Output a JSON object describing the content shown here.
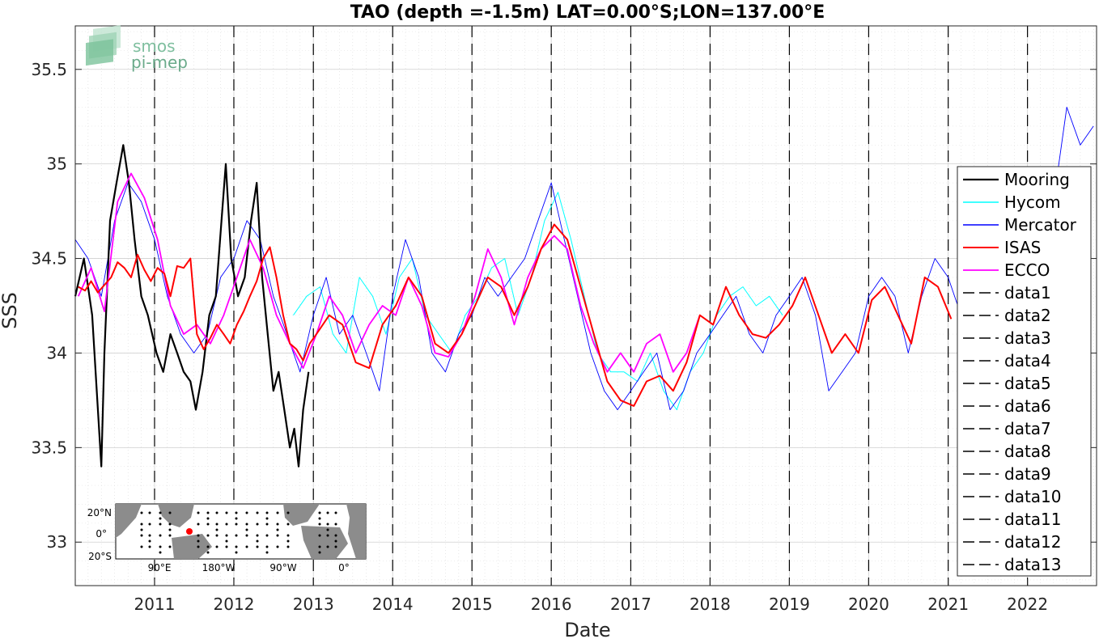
{
  "chart_data": {
    "type": "line",
    "title": "TAO (depth =-1.5m) LAT=0.00°S;LON=137.00°E",
    "xlabel": "Date",
    "ylabel": "SSS",
    "xlim": [
      "2010-01-01",
      "2022-11-15"
    ],
    "ylim": [
      32.77,
      35.73
    ],
    "x_ticks": [
      "2011",
      "2012",
      "2013",
      "2014",
      "2015",
      "2016",
      "2017",
      "2018",
      "2019",
      "2020",
      "2021",
      "2022"
    ],
    "x_tick_dates": [
      "2011-01-01",
      "2012-01-01",
      "2013-01-01",
      "2014-01-01",
      "2015-01-01",
      "2016-01-01",
      "2017-01-01",
      "2018-01-01",
      "2019-01-01",
      "2020-01-01",
      "2021-01-01",
      "2022-01-01"
    ],
    "y_ticks": [
      33,
      33.5,
      34,
      34.5,
      35,
      35.5
    ],
    "y_tick_labels": [
      "33",
      "33.5",
      "34",
      "34.5",
      "35",
      "35.5"
    ],
    "grid": true,
    "legend_position": "right",
    "colors": {
      "Mooring": "#000000",
      "Hycom": "#00ffff",
      "Mercator": "#0000ff",
      "ISAS": "#ff0000",
      "ECCO": "#ff00ff",
      "vlines": "#000000"
    },
    "series": [
      {
        "name": "Mooring",
        "x": [
          "2010-01-01",
          "2010-02-10",
          "2010-03-20",
          "2010-05-01",
          "2010-05-15",
          "2010-06-10",
          "2010-07-10",
          "2010-08-10",
          "2010-09-05",
          "2010-10-01",
          "2010-11-01",
          "2010-12-01",
          "2011-01-10",
          "2011-02-10",
          "2011-03-15",
          "2011-04-15",
          "2011-05-15",
          "2011-06-15",
          "2011-07-10",
          "2011-08-10",
          "2011-09-10",
          "2011-10-10",
          "2011-11-05",
          "2011-11-25",
          "2011-12-20",
          "2012-01-20",
          "2012-02-20",
          "2012-03-20",
          "2012-04-15",
          "2012-05-10",
          "2012-06-05",
          "2012-07-01",
          "2012-07-25",
          "2012-08-20",
          "2012-09-15",
          "2012-10-05",
          "2012-10-25",
          "2012-11-15",
          "2012-12-10"
        ],
        "y": [
          34.3,
          34.5,
          34.2,
          33.4,
          34.0,
          34.7,
          34.9,
          35.1,
          34.9,
          34.6,
          34.3,
          34.2,
          34.0,
          33.9,
          34.1,
          34.0,
          33.9,
          33.85,
          33.7,
          33.9,
          34.2,
          34.3,
          34.7,
          35.0,
          34.5,
          34.3,
          34.4,
          34.7,
          34.9,
          34.4,
          34.1,
          33.8,
          33.9,
          33.7,
          33.5,
          33.6,
          33.4,
          33.7,
          33.9
        ]
      },
      {
        "name": "Hycom",
        "x": [
          "2012-10-01",
          "2012-12-01",
          "2013-02-01",
          "2013-04-01",
          "2013-06-01",
          "2013-08-01",
          "2013-10-01",
          "2013-12-01",
          "2014-02-01",
          "2014-04-01",
          "2014-06-01",
          "2014-08-01",
          "2014-10-01",
          "2014-12-01",
          "2015-02-01",
          "2015-04-01",
          "2015-06-01",
          "2015-08-01",
          "2015-10-01",
          "2015-12-01",
          "2016-02-01",
          "2016-04-01",
          "2016-06-01",
          "2016-08-01",
          "2016-10-01",
          "2016-12-01",
          "2017-02-01",
          "2017-04-01",
          "2017-06-01",
          "2017-08-01",
          "2017-10-01",
          "2017-12-01",
          "2018-02-01",
          "2018-04-01",
          "2018-06-01",
          "2018-08-01",
          "2018-10-01",
          "2018-12-01"
        ],
        "y": [
          34.2,
          34.3,
          34.35,
          34.1,
          34.0,
          34.4,
          34.3,
          34.1,
          34.4,
          34.5,
          34.2,
          34.1,
          34.0,
          34.2,
          34.3,
          34.45,
          34.5,
          34.2,
          34.4,
          34.7,
          34.85,
          34.6,
          34.3,
          34.0,
          33.9,
          33.9,
          33.85,
          34.0,
          33.8,
          33.7,
          33.9,
          34.0,
          34.2,
          34.3,
          34.35,
          34.25,
          34.3,
          34.2
        ]
      },
      {
        "name": "Mercator",
        "x": [
          "2010-01-01",
          "2010-03-01",
          "2010-05-01",
          "2010-07-01",
          "2010-09-01",
          "2010-11-01",
          "2011-01-01",
          "2011-03-01",
          "2011-05-01",
          "2011-07-01",
          "2011-09-01",
          "2011-11-01",
          "2012-01-01",
          "2012-03-01",
          "2012-05-01",
          "2012-07-01",
          "2012-09-01",
          "2012-11-01",
          "2013-01-01",
          "2013-03-01",
          "2013-05-01",
          "2013-07-01",
          "2013-09-01",
          "2013-11-01",
          "2014-01-01",
          "2014-03-01",
          "2014-05-01",
          "2014-07-01",
          "2014-09-01",
          "2014-11-01",
          "2015-01-01",
          "2015-03-01",
          "2015-05-01",
          "2015-07-01",
          "2015-09-01",
          "2015-11-01",
          "2016-01-01",
          "2016-03-01",
          "2016-05-01",
          "2016-07-01",
          "2016-09-01",
          "2016-11-01",
          "2017-01-01",
          "2017-03-01",
          "2017-05-01",
          "2017-07-01",
          "2017-09-01",
          "2017-11-01",
          "2018-01-01",
          "2018-03-01",
          "2018-05-01",
          "2018-07-01",
          "2018-09-01",
          "2018-11-01",
          "2019-01-01",
          "2019-03-01",
          "2019-05-01",
          "2019-07-01",
          "2019-09-01",
          "2019-11-01",
          "2020-01-01",
          "2020-03-01",
          "2020-05-01",
          "2020-07-01",
          "2020-09-01",
          "2020-11-01",
          "2021-01-01",
          "2021-03-01",
          "2021-05-01",
          "2021-07-01",
          "2021-09-01",
          "2021-11-01",
          "2022-01-01",
          "2022-03-01",
          "2022-05-01",
          "2022-07-01",
          "2022-09-01",
          "2022-11-01"
        ],
        "y": [
          34.6,
          34.5,
          34.3,
          34.7,
          34.9,
          34.8,
          34.6,
          34.3,
          34.1,
          34.0,
          34.1,
          34.4,
          34.5,
          34.7,
          34.6,
          34.3,
          34.1,
          33.9,
          34.2,
          34.4,
          34.1,
          34.2,
          34.0,
          33.8,
          34.3,
          34.6,
          34.4,
          34.0,
          33.9,
          34.1,
          34.2,
          34.4,
          34.3,
          34.4,
          34.5,
          34.7,
          34.9,
          34.6,
          34.3,
          34.0,
          33.8,
          33.7,
          33.8,
          33.9,
          34.0,
          33.7,
          33.8,
          34.0,
          34.1,
          34.2,
          34.3,
          34.1,
          34.0,
          34.2,
          34.3,
          34.4,
          34.2,
          33.8,
          33.9,
          34.0,
          34.3,
          34.4,
          34.3,
          34.0,
          34.3,
          34.5,
          34.4,
          34.2,
          34.3,
          34.1,
          34.5,
          34.6,
          34.7,
          34.4,
          34.8,
          35.3,
          35.1,
          35.2
        ]
      },
      {
        "name": "ISAS",
        "x": [
          "2010-01-15",
          "2010-02-15",
          "2010-03-15",
          "2010-04-15",
          "2010-05-15",
          "2010-06-15",
          "2010-07-15",
          "2010-08-15",
          "2010-09-15",
          "2010-10-15",
          "2010-11-15",
          "2010-12-15",
          "2011-01-15",
          "2011-02-15",
          "2011-03-15",
          "2011-04-15",
          "2011-05-15",
          "2011-06-15",
          "2011-07-15",
          "2011-08-15",
          "2011-09-15",
          "2011-10-15",
          "2011-11-15",
          "2011-12-15",
          "2012-01-15",
          "2012-02-15",
          "2012-03-15",
          "2012-04-15",
          "2012-05-15",
          "2012-06-15",
          "2012-07-15",
          "2012-08-15",
          "2012-09-15",
          "2012-10-15",
          "2012-11-15",
          "2012-12-15",
          "2013-01-15",
          "2013-03-15",
          "2013-05-15",
          "2013-07-15",
          "2013-09-15",
          "2013-11-15",
          "2014-01-15",
          "2014-03-15",
          "2014-05-15",
          "2014-07-15",
          "2014-09-15",
          "2014-11-15",
          "2015-01-15",
          "2015-03-15",
          "2015-05-15",
          "2015-07-15",
          "2015-09-15",
          "2015-11-15",
          "2016-01-15",
          "2016-03-15",
          "2016-05-15",
          "2016-07-15",
          "2016-09-15",
          "2016-11-15",
          "2017-01-15",
          "2017-03-15",
          "2017-05-15",
          "2017-07-15",
          "2017-09-15",
          "2017-11-15",
          "2018-01-15",
          "2018-03-15",
          "2018-05-15",
          "2018-07-15",
          "2018-09-15",
          "2018-11-15",
          "2019-01-15",
          "2019-03-15",
          "2019-05-15",
          "2019-07-15",
          "2019-09-15",
          "2019-11-15",
          "2020-01-15",
          "2020-03-15",
          "2020-05-15",
          "2020-07-15",
          "2020-09-15",
          "2020-11-15",
          "2021-01-15"
        ],
        "y": [
          34.35,
          34.33,
          34.38,
          34.32,
          34.36,
          34.4,
          34.48,
          34.45,
          34.4,
          34.52,
          34.44,
          34.38,
          34.45,
          34.42,
          34.3,
          34.46,
          34.45,
          34.5,
          34.1,
          34.02,
          34.08,
          34.15,
          34.1,
          34.05,
          34.15,
          34.22,
          34.3,
          34.38,
          34.5,
          34.56,
          34.4,
          34.2,
          34.05,
          34.02,
          33.96,
          34.05,
          34.1,
          34.2,
          34.15,
          33.95,
          33.92,
          34.15,
          34.25,
          34.4,
          34.3,
          34.05,
          34.0,
          34.1,
          34.25,
          34.4,
          34.35,
          34.2,
          34.35,
          34.55,
          34.68,
          34.6,
          34.35,
          34.1,
          33.85,
          33.75,
          33.72,
          33.85,
          33.88,
          33.8,
          33.95,
          34.2,
          34.15,
          34.35,
          34.2,
          34.1,
          34.08,
          34.15,
          34.25,
          34.4,
          34.2,
          34.0,
          34.1,
          34.0,
          34.28,
          34.35,
          34.2,
          34.05,
          34.4,
          34.35,
          34.18
        ]
      },
      {
        "name": "ECCO",
        "x": [
          "2010-01-15",
          "2010-03-15",
          "2010-05-15",
          "2010-07-15",
          "2010-09-15",
          "2010-11-15",
          "2011-01-15",
          "2011-03-15",
          "2011-05-15",
          "2011-07-15",
          "2011-09-15",
          "2011-11-15",
          "2012-01-15",
          "2012-03-15",
          "2012-05-15",
          "2012-07-15",
          "2012-09-15",
          "2012-11-15",
          "2013-01-15",
          "2013-03-15",
          "2013-05-15",
          "2013-07-15",
          "2013-09-15",
          "2013-11-15",
          "2014-01-15",
          "2014-03-15",
          "2014-05-15",
          "2014-07-15",
          "2014-09-15",
          "2014-11-15",
          "2015-01-15",
          "2015-03-15",
          "2015-05-15",
          "2015-07-15",
          "2015-09-15",
          "2015-11-15",
          "2016-01-15",
          "2016-03-15",
          "2016-05-15",
          "2016-07-15",
          "2016-09-15",
          "2016-11-15",
          "2017-01-15",
          "2017-03-15",
          "2017-05-15",
          "2017-07-15",
          "2017-09-15",
          "2017-11-15"
        ],
        "y": [
          34.3,
          34.45,
          34.22,
          34.8,
          34.95,
          34.82,
          34.6,
          34.25,
          34.1,
          34.15,
          34.05,
          34.2,
          34.4,
          34.6,
          34.45,
          34.2,
          34.05,
          33.92,
          34.1,
          34.3,
          34.2,
          34.0,
          34.15,
          34.25,
          34.2,
          34.4,
          34.25,
          34.0,
          33.98,
          34.1,
          34.3,
          34.55,
          34.4,
          34.15,
          34.4,
          34.55,
          34.62,
          34.55,
          34.25,
          34.05,
          33.9,
          34.0,
          33.9,
          34.05,
          34.1,
          33.9,
          34.0,
          34.2
        ]
      }
    ],
    "vlines": [
      {
        "name": "data1",
        "x": "2011-01-01"
      },
      {
        "name": "data2",
        "x": "2012-01-01"
      },
      {
        "name": "data3",
        "x": "2013-01-01"
      },
      {
        "name": "data4",
        "x": "2014-01-01"
      },
      {
        "name": "data5",
        "x": "2015-01-01"
      },
      {
        "name": "data6",
        "x": "2016-01-01"
      },
      {
        "name": "data7",
        "x": "2017-01-01"
      },
      {
        "name": "data8",
        "x": "2018-01-01"
      },
      {
        "name": "data9",
        "x": "2019-01-01"
      },
      {
        "name": "data10",
        "x": "2020-01-01"
      },
      {
        "name": "data11",
        "x": "2021-01-01"
      },
      {
        "name": "data12",
        "x": "2022-01-01"
      },
      {
        "name": "data13",
        "x": "2023-01-01"
      }
    ]
  },
  "logo": {
    "line1": "smos",
    "line2": "pi-mep"
  },
  "inset_map": {
    "y_labels": [
      "20°N",
      "0°",
      "20°S"
    ],
    "x_labels": [
      "90°E",
      "180°W",
      "90°W",
      "0°"
    ]
  }
}
